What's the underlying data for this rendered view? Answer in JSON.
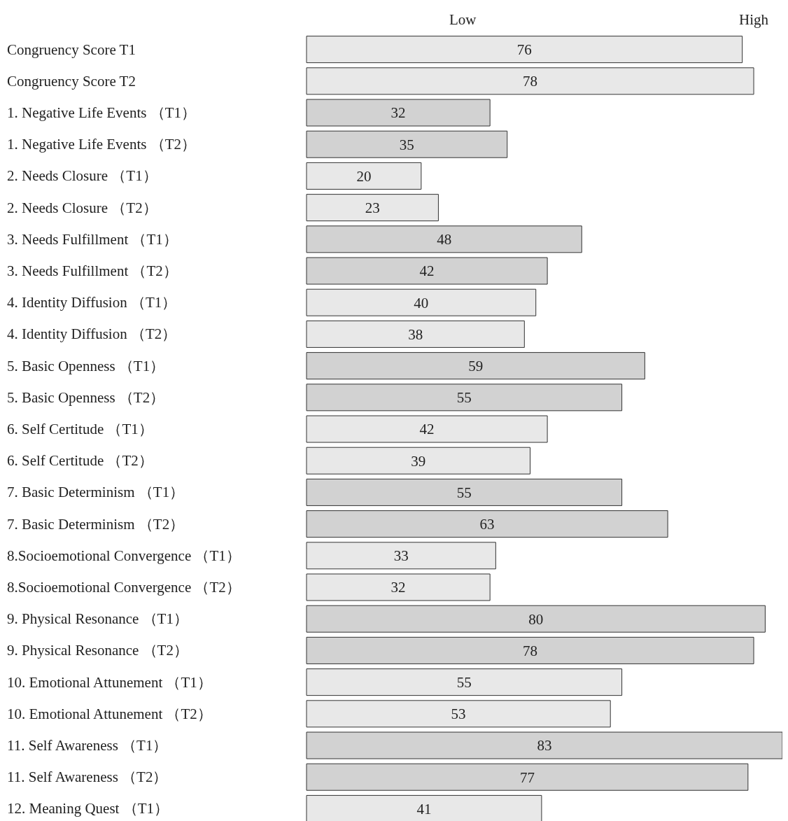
{
  "chart_data": {
    "type": "bar",
    "orientation": "horizontal",
    "data_labels": true,
    "legend": false,
    "grid": false,
    "annotations": [
      "Low",
      "High"
    ],
    "categories": [
      "Congruency Score T1",
      "Congruency Score T2",
      "1. Negative Life Events （T1）",
      "1. Negative Life Events （T2）",
      "2. Needs Closure （T1）",
      "2. Needs Closure （T2）",
      "3. Needs Fulfillment （T1）",
      "3. Needs Fulfillment （T2）",
      "4. Identity Diffusion （T1）",
      "4. Identity Diffusion （T2）",
      "5. Basic Openness （T1）",
      "5. Basic Openness （T2）",
      "6. Self Certitude （T1）",
      "6. Self Certitude （T2）",
      "7. Basic Determinism （T1）",
      "7. Basic Determinism （T2）",
      "8.Socioemotional Convergence （T1）",
      "8.Socioemotional Convergence （T2）",
      "9. Physical Resonance （T1）",
      "9. Physical Resonance （T2）",
      "10. Emotional Attunement （T1）",
      "10. Emotional Attunement （T2）",
      "11. Self Awareness （T1）",
      "11. Self Awareness （T2）",
      "12. Meaning Quest （T1）"
    ],
    "values": [
      76,
      78,
      32,
      35,
      20,
      23,
      48,
      42,
      40,
      38,
      59,
      55,
      42,
      39,
      55,
      63,
      33,
      32,
      80,
      78,
      55,
      53,
      83,
      77,
      41
    ],
    "colors": [
      "#e8e8e8",
      "#e8e8e8",
      "#d2d2d2",
      "#d2d2d2",
      "#e8e8e8",
      "#e8e8e8",
      "#d2d2d2",
      "#d2d2d2",
      "#e8e8e8",
      "#e8e8e8",
      "#d2d2d2",
      "#d2d2d2",
      "#e8e8e8",
      "#e8e8e8",
      "#d2d2d2",
      "#d2d2d2",
      "#e8e8e8",
      "#e8e8e8",
      "#d2d2d2",
      "#d2d2d2",
      "#e8e8e8",
      "#e8e8e8",
      "#d2d2d2",
      "#d2d2d2",
      "#e8e8e8"
    ]
  }
}
